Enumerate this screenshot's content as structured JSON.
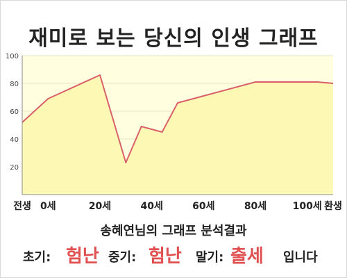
{
  "colors": {
    "plot_fill": "#ffffe0",
    "area_fill": "#fdf9b4",
    "line": "#d9606a",
    "grid": "#e3e3c6",
    "axis_text": "#444444",
    "highlight": "#e05050"
  },
  "chart_data": {
    "type": "area",
    "title": "재미로 보는 당신의 인생 그래프",
    "xlabel": "",
    "ylabel": "",
    "ylim": [
      0,
      100
    ],
    "yticks": [
      20,
      40,
      60,
      80,
      100
    ],
    "xlim": [
      -10,
      110
    ],
    "xticks": [
      {
        "value": -10,
        "label": "전생"
      },
      {
        "value": 0,
        "label": "0세"
      },
      {
        "value": 20,
        "label": "20세"
      },
      {
        "value": 40,
        "label": "40세"
      },
      {
        "value": 60,
        "label": "60세"
      },
      {
        "value": 80,
        "label": "80세"
      },
      {
        "value": 100,
        "label": "100세"
      },
      {
        "value": 110,
        "label": "환생"
      }
    ],
    "grid": true,
    "legend": "none",
    "series": [
      {
        "x": [
          -10,
          0,
          20,
          30,
          36,
          44,
          50,
          64,
          80,
          90,
          100,
          104,
          110
        ],
        "y": [
          52,
          69,
          86,
          23,
          49,
          45,
          66,
          73,
          81,
          81,
          81,
          81,
          80
        ]
      }
    ]
  },
  "result": {
    "heading": "송혜연님의 그래프 분석결과",
    "early_label": "초기:",
    "early_value": "험난",
    "middle_label": "중기:",
    "middle_value": "험난",
    "late_label": "말기:",
    "late_value": "출세",
    "ending": "입니다"
  }
}
